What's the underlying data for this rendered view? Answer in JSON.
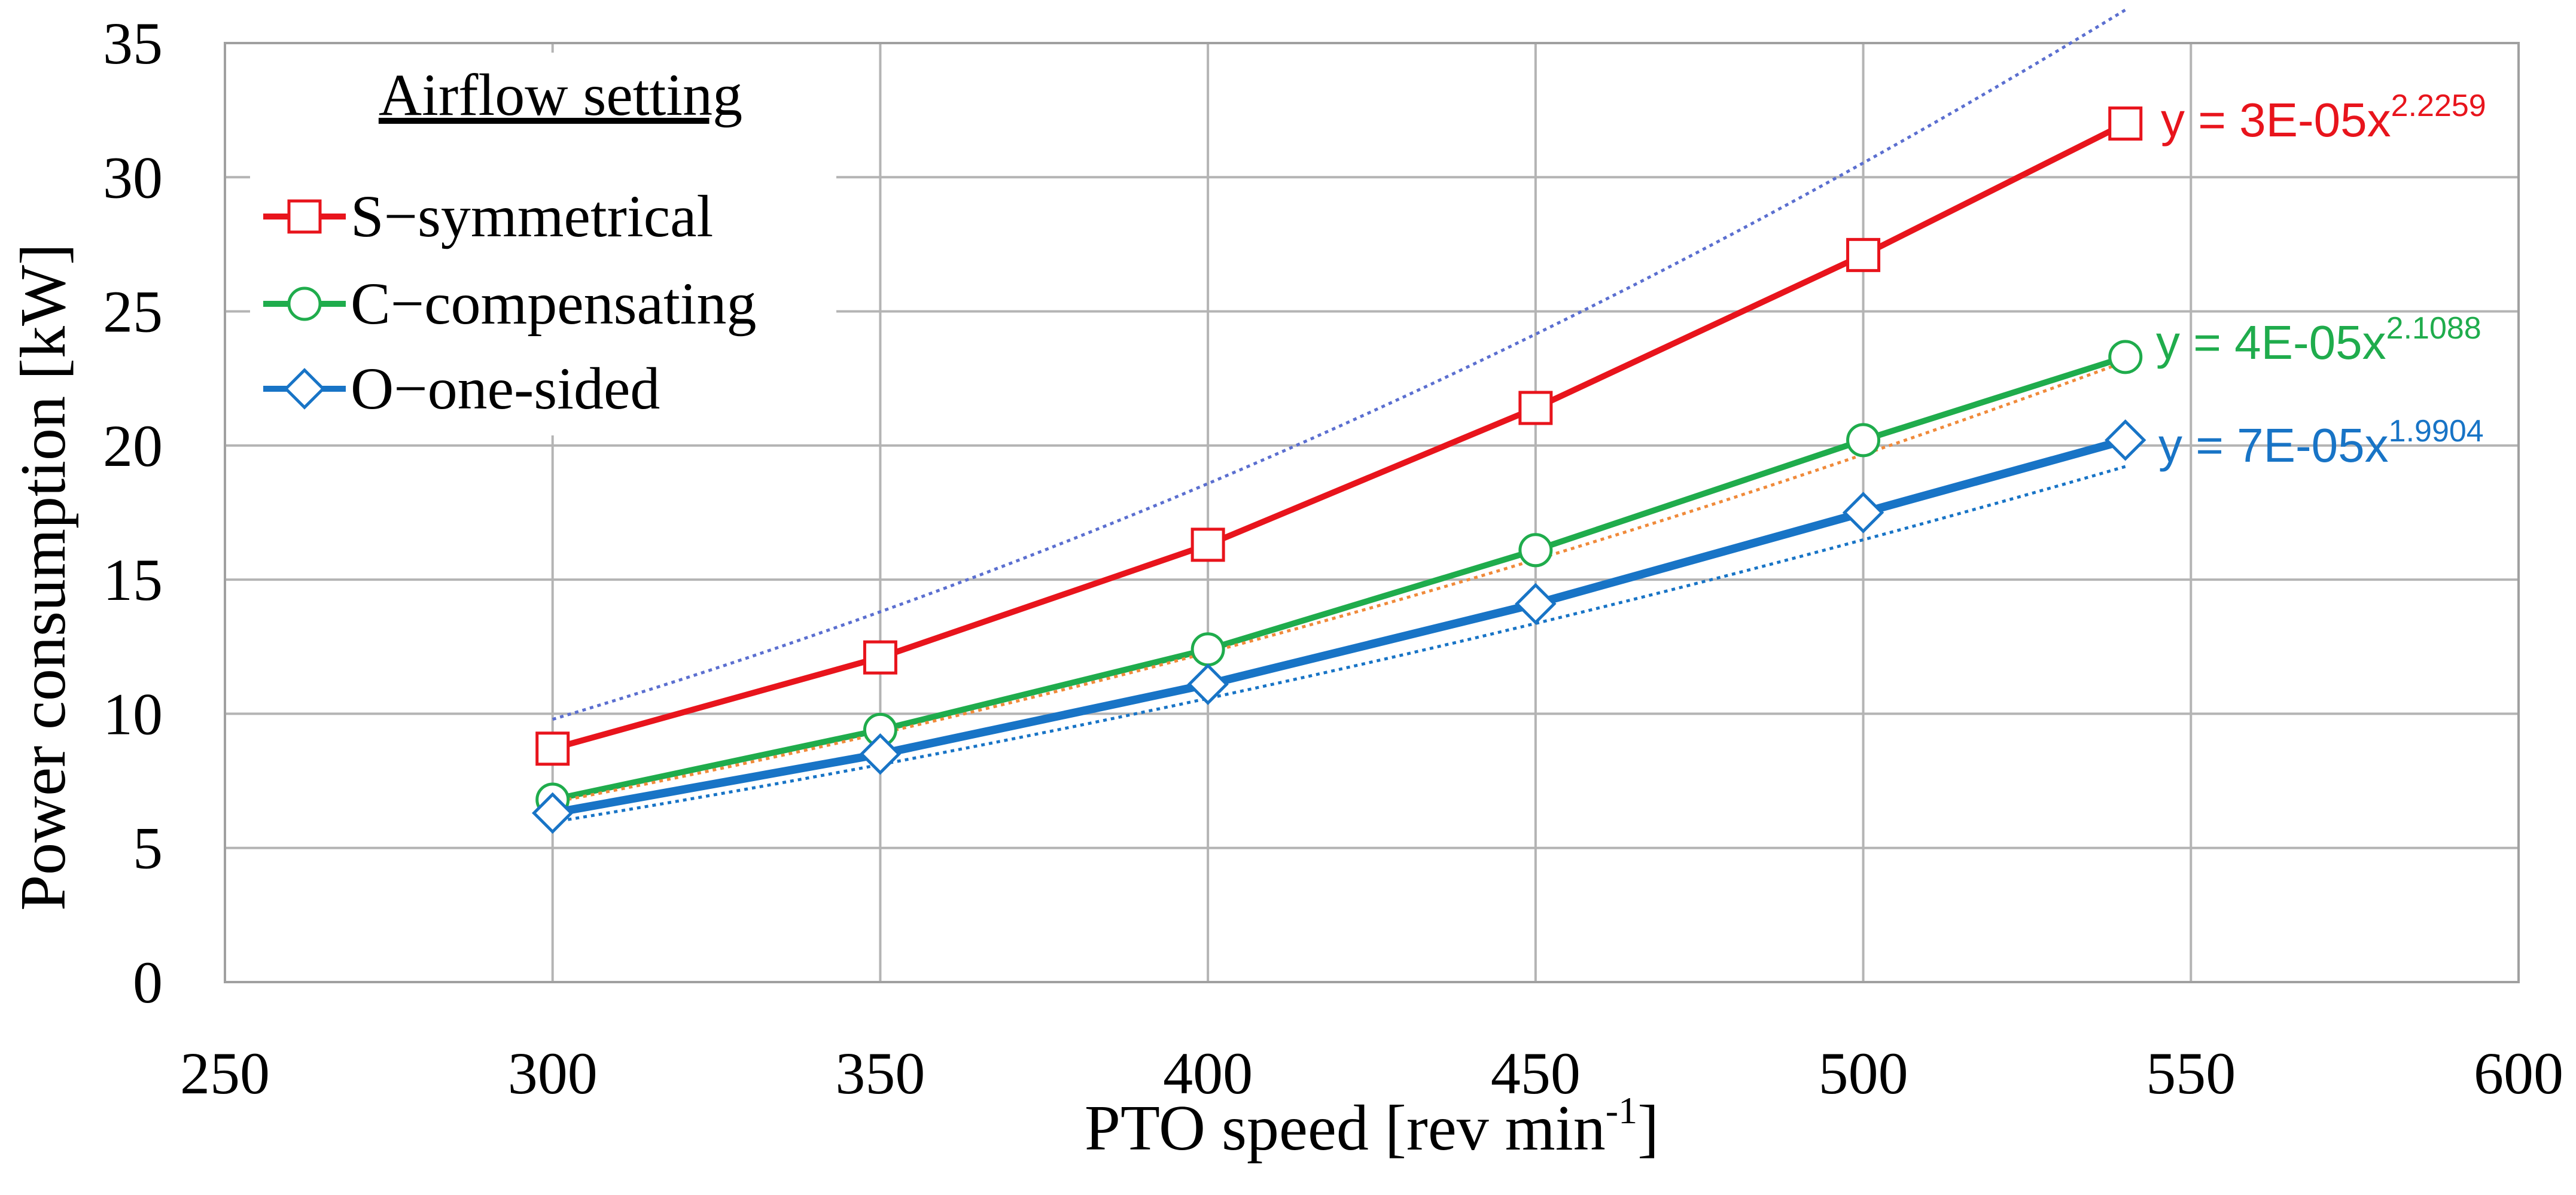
{
  "chart_data": {
    "type": "line",
    "title": "",
    "xlabel": "PTO speed  [rev min",
    "xlabel_sup": "-1",
    "xlabel_end": "]",
    "ylabel": "Power consumption [kW]",
    "xlim": [
      250,
      600
    ],
    "ylim": [
      0,
      35
    ],
    "xticks": [
      250,
      300,
      350,
      400,
      450,
      500,
      550,
      600
    ],
    "yticks": [
      0,
      5,
      10,
      15,
      20,
      25,
      30,
      35
    ],
    "grid": true,
    "legend": {
      "title": "Airflow setting",
      "placement": "top-left"
    },
    "x": [
      300,
      350,
      400,
      450,
      500,
      540
    ],
    "series": [
      {
        "name": "S−symmetrical",
        "color": "#e8141c",
        "trend_color": "#5b6fd0",
        "marker": "square",
        "values": [
          8.7,
          12.1,
          16.3,
          21.4,
          27.1,
          32.0
        ],
        "trend": {
          "a": 3e-05,
          "b": 2.2259
        },
        "equation": "y = 3E-05x",
        "equation_exp": "2.2259"
      },
      {
        "name": "C−compensating",
        "color": "#1fac4c",
        "trend_color": "#f08a3a",
        "marker": "circle",
        "values": [
          6.8,
          9.4,
          12.4,
          16.1,
          20.2,
          23.3
        ],
        "trend": {
          "a": 4e-05,
          "b": 2.1088
        },
        "equation": "y = 4E-05x",
        "equation_exp": "2.1088"
      },
      {
        "name": "O−one-sided",
        "color": "#1874c6",
        "trend_color": "#1874c6",
        "marker": "diamond",
        "values": [
          6.3,
          8.5,
          11.1,
          14.1,
          17.5,
          20.2
        ],
        "trend": {
          "a": 7e-05,
          "b": 1.9904
        },
        "equation": "y = 7E-05x",
        "equation_exp": "1.9904"
      }
    ]
  }
}
